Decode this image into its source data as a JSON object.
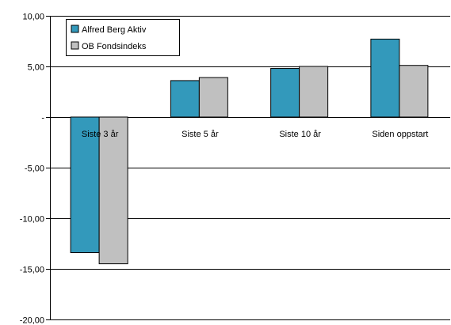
{
  "chart_data": {
    "type": "bar",
    "title": "",
    "xlabel": "",
    "ylabel": "",
    "categories": [
      "Siste 3 år",
      "Siste 5 år",
      "Siste 10 år",
      "Siden oppstart"
    ],
    "series": [
      {
        "name": "Alfred Berg Aktiv",
        "color": "#3399BB",
        "values": [
          -13.4,
          3.6,
          4.8,
          7.7
        ]
      },
      {
        "name": "OB Fondsindeks",
        "color": "#C0C0C0",
        "values": [
          -14.5,
          3.9,
          5.0,
          5.1
        ]
      }
    ],
    "ylim": [
      -20,
      10
    ],
    "yticks": [
      10,
      5,
      0,
      -5,
      -10,
      -15,
      -20
    ],
    "ytick_labels": [
      "10,00",
      "5,00",
      "-",
      "-5,00",
      "-10,00",
      "-15,00",
      "-20,00"
    ],
    "grid": true,
    "legend": "top-left"
  }
}
